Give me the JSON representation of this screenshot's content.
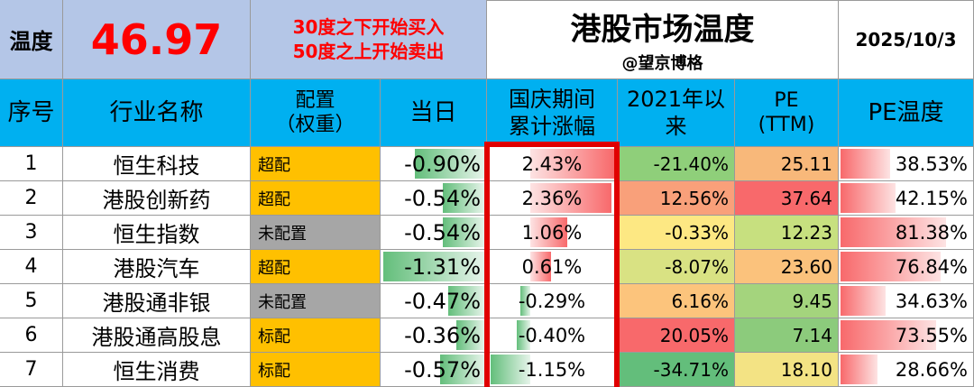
{
  "top": {
    "temp_label": "温度",
    "temp_value": "46.97",
    "rule_line1": "30度之下开始买入",
    "rule_line2": "50度之上开始卖出",
    "title": "港股市场温度",
    "author": "@望京博格",
    "date": "2025/10/3"
  },
  "headers": {
    "no": "序号",
    "name": "行业名称",
    "alloc_line1": "配置",
    "alloc_line2": "（权重）",
    "today": "当日",
    "holiday_line1": "国庆期间",
    "holiday_line2": "累计涨幅",
    "since_line1": "2021年以",
    "since_line2": "来",
    "pe_line1": "PE",
    "pe_line2": "(TTM)",
    "pe_temp": "PE温度"
  },
  "colors": {
    "header_bg": "#00b0f0",
    "top_left_bg": "#b4c6e7",
    "rule_text": "#ff0000",
    "temp_value": "#ff0000",
    "overweight": "#ffc000",
    "unallocated": "#a6a6a6",
    "highlight_border": "#e00000"
  },
  "rows": [
    {
      "no": "1",
      "name": "恒生科技",
      "alloc": "超配",
      "alloc_type": "overweight",
      "today": "-0.90%",
      "today_val": -0.9,
      "holiday": "2.43%",
      "holiday_val": 2.43,
      "since": "-21.40%",
      "since_color": "#8fcf7a",
      "pe": "25.11",
      "pe_color": "#f8b87a",
      "pe_temp": "38.53%",
      "pe_temp_val": 38.53
    },
    {
      "no": "2",
      "name": "港股创新药",
      "alloc": "超配",
      "alloc_type": "overweight",
      "today": "-0.54%",
      "today_val": -0.54,
      "holiday": "2.36%",
      "holiday_val": 2.36,
      "since": "12.56%",
      "since_color": "#f9a07a",
      "pe": "37.64",
      "pe_color": "#f8696b",
      "pe_temp": "42.15%",
      "pe_temp_val": 42.15
    },
    {
      "no": "3",
      "name": "恒生指数",
      "alloc": "未配置",
      "alloc_type": "unallocated",
      "today": "-0.54%",
      "today_val": -0.54,
      "holiday": "1.06%",
      "holiday_val": 1.06,
      "since": "-0.33%",
      "since_color": "#fde883",
      "pe": "12.23",
      "pe_color": "#c7e07f",
      "pe_temp": "81.38%",
      "pe_temp_val": 81.38
    },
    {
      "no": "4",
      "name": "港股汽车",
      "alloc": "超配",
      "alloc_type": "overweight",
      "today": "-1.31%",
      "today_val": -1.31,
      "holiday": "0.61%",
      "holiday_val": 0.61,
      "since": "-8.07%",
      "since_color": "#d9e283",
      "pe": "23.60",
      "pe_color": "#fbc27c",
      "pe_temp": "76.84%",
      "pe_temp_val": 76.84
    },
    {
      "no": "5",
      "name": "港股通非银",
      "alloc": "未配置",
      "alloc_type": "unallocated",
      "today": "-0.47%",
      "today_val": -0.47,
      "holiday": "-0.29%",
      "holiday_val": -0.29,
      "since": "6.16%",
      "since_color": "#fcc47c",
      "pe": "9.45",
      "pe_color": "#a4d47d",
      "pe_temp": "34.63%",
      "pe_temp_val": 34.63
    },
    {
      "no": "6",
      "name": "港股通高股息",
      "alloc": "标配",
      "alloc_type": "overweight",
      "today": "-0.36%",
      "today_val": -0.36,
      "holiday": "-0.40%",
      "holiday_val": -0.4,
      "since": "20.05%",
      "since_color": "#f8696b",
      "pe": "7.14",
      "pe_color": "#8ccb7c",
      "pe_temp": "73.55%",
      "pe_temp_val": 73.55
    },
    {
      "no": "7",
      "name": "恒生消费",
      "alloc": "标配",
      "alloc_type": "overweight",
      "today": "-0.57%",
      "today_val": -0.57,
      "holiday": "-1.15%",
      "holiday_val": -1.15,
      "since": "-34.71%",
      "since_color": "#63be7b",
      "pe": "18.10",
      "pe_color": "#f3e384",
      "pe_temp": "28.66%",
      "pe_temp_val": 28.66
    }
  ]
}
